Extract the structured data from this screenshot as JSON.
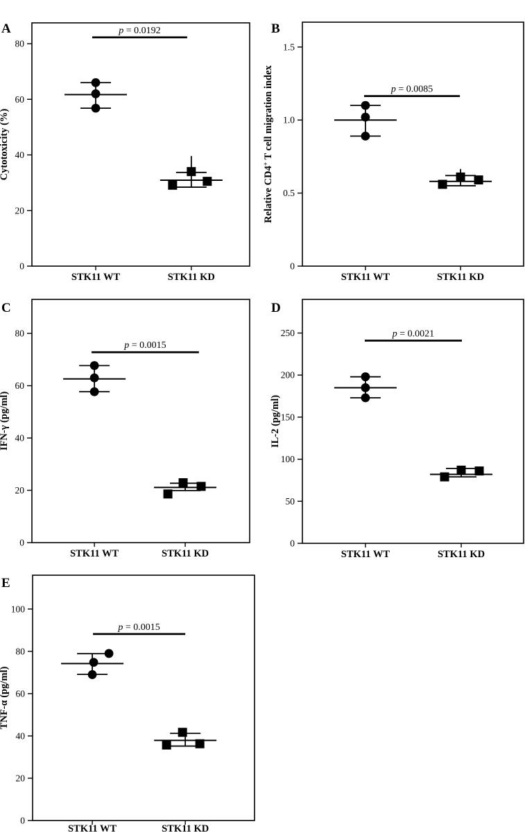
{
  "figure": {
    "background": "#ffffff",
    "ink": "#000000",
    "group_labels": [
      "STK11 WT",
      "STK11 KD"
    ]
  },
  "chart_data": [
    {
      "panel": "A",
      "type": "scatter",
      "ylabel": "Cytotoxicity (%)",
      "ylabel_segments": [
        {
          "text": "Cytotoxicity (%)",
          "sup": false
        }
      ],
      "ylim": [
        0,
        87.5
      ],
      "yticks": [
        0,
        20,
        40,
        60,
        80
      ],
      "ytick_labels": [
        "0",
        "20",
        "40",
        "60",
        "80"
      ],
      "categories": [
        "STK11 WT",
        "STK11 KD"
      ],
      "p_label": "p = 0.0192",
      "p_bar": {
        "y": 82.3,
        "x1_frac": 0.277,
        "x2_frac": 0.713
      },
      "series": [
        {
          "name": "STK11 WT",
          "marker": "circle",
          "points": [
            {
              "v": 66,
              "dx": 0
            },
            {
              "v": 62,
              "dx": 0
            },
            {
              "v": 56.8,
              "dx": 0
            }
          ],
          "mean": 61.7,
          "cap_hi": 66,
          "cap_lo": 56.8
        },
        {
          "name": "STK11 KD",
          "marker": "square",
          "points": [
            {
              "v": 34,
              "dx": 0
            },
            {
              "v": 29.1,
              "dx": -27
            },
            {
              "v": 30.5,
              "dx": 23
            }
          ],
          "mean": 30.9,
          "cap_hi": 33.7,
          "cap_lo": 28.4,
          "line_top": 39.6
        }
      ]
    },
    {
      "panel": "B",
      "type": "scatter",
      "ylabel": "Relative CD4+ T cell migration index",
      "ylabel_segments": [
        {
          "text": "Relative CD4",
          "sup": false
        },
        {
          "text": "+",
          "sup": true
        },
        {
          "text": " T cell migration index",
          "sup": false
        }
      ],
      "ylim": [
        0,
        1.67
      ],
      "yticks": [
        0,
        0.5,
        1.0,
        1.5
      ],
      "ytick_labels": [
        "0",
        "0.5",
        "1.0",
        "1.5"
      ],
      "categories": [
        "STK11 WT",
        "STK11 KD"
      ],
      "p_label": "p = 0.0085",
      "p_bar": {
        "y": 1.164,
        "x1_frac": 0.279,
        "x2_frac": 0.712
      },
      "series": [
        {
          "name": "STK11 WT",
          "marker": "circle",
          "points": [
            {
              "v": 1.1,
              "dx": 0
            },
            {
              "v": 1.02,
              "dx": 0
            },
            {
              "v": 0.89,
              "dx": 0
            }
          ],
          "mean": 1.0,
          "cap_hi": 1.1,
          "cap_lo": 0.89
        },
        {
          "name": "STK11 KD",
          "marker": "square",
          "points": [
            {
              "v": 0.61,
              "dx": 0
            },
            {
              "v": 0.56,
              "dx": -26
            },
            {
              "v": 0.59,
              "dx": 26
            }
          ],
          "mean": 0.58,
          "cap_hi": 0.62,
          "cap_lo": 0.55,
          "line_top": 0.665
        }
      ]
    },
    {
      "panel": "C",
      "type": "scatter",
      "ylabel": "IFN-γ (pg/ml)",
      "ylabel_segments": [
        {
          "text": "IFN-γ (pg/ml)",
          "sup": false
        }
      ],
      "ylim": [
        0,
        93
      ],
      "yticks": [
        0,
        20,
        40,
        60,
        80
      ],
      "ytick_labels": [
        "0",
        "20",
        "40",
        "60",
        "80"
      ],
      "categories": [
        "STK11 WT",
        "STK11 KD"
      ],
      "p_label": "p = 0.0015",
      "p_bar": {
        "y": 72.8,
        "x1_frac": 0.274,
        "x2_frac": 0.767
      },
      "series": [
        {
          "name": "STK11 WT",
          "marker": "circle",
          "points": [
            {
              "v": 67.7,
              "dx": 0
            },
            {
              "v": 63,
              "dx": 0
            },
            {
              "v": 57.7,
              "dx": 0
            }
          ],
          "mean": 62.6,
          "cap_hi": 67.7,
          "cap_lo": 57.7
        },
        {
          "name": "STK11 KD",
          "marker": "square",
          "points": [
            {
              "v": 22.9,
              "dx": -3
            },
            {
              "v": 18.6,
              "dx": -25
            },
            {
              "v": 21.5,
              "dx": 23
            }
          ],
          "mean": 21.1,
          "cap_hi": 22.7,
          "cap_lo": 19.9
        }
      ]
    },
    {
      "panel": "D",
      "type": "scatter",
      "ylabel": "IL-2 (pg/ml)",
      "ylabel_segments": [
        {
          "text": "IL-2 (pg/ml)",
          "sup": false
        }
      ],
      "ylim": [
        0,
        290
      ],
      "yticks": [
        0,
        50,
        100,
        150,
        200,
        250
      ],
      "ytick_labels": [
        "0",
        "50",
        "100",
        "150",
        "200",
        "250"
      ],
      "categories": [
        "STK11 WT",
        "STK11 KD"
      ],
      "p_label": "p = 0.0021",
      "p_bar": {
        "y": 241,
        "x1_frac": 0.282,
        "x2_frac": 0.721
      },
      "series": [
        {
          "name": "STK11 WT",
          "marker": "circle",
          "points": [
            {
              "v": 198,
              "dx": 0
            },
            {
              "v": 185,
              "dx": 0
            },
            {
              "v": 173,
              "dx": 0
            }
          ],
          "mean": 185,
          "cap_hi": 198,
          "cap_lo": 173
        },
        {
          "name": "STK11 KD",
          "marker": "square",
          "points": [
            {
              "v": 87,
              "dx": 0
            },
            {
              "v": 79,
              "dx": -24
            },
            {
              "v": 86,
              "dx": 26
            }
          ],
          "mean": 82,
          "cap_hi": 89,
          "cap_lo": 79
        }
      ]
    },
    {
      "panel": "E",
      "type": "scatter",
      "ylabel": "TNF-α (pg/ml)",
      "ylabel_segments": [
        {
          "text": "TNF-α (pg/ml)",
          "sup": false
        }
      ],
      "ylim": [
        0,
        116
      ],
      "yticks": [
        0,
        20,
        40,
        60,
        80,
        100
      ],
      "ytick_labels": [
        "0",
        "20",
        "40",
        "60",
        "80",
        "100"
      ],
      "categories": [
        "STK11 WT",
        "STK11 KD"
      ],
      "p_label": "p = 0.0015",
      "p_bar": {
        "y": 88.2,
        "x1_frac": 0.272,
        "x2_frac": 0.688
      },
      "series": [
        {
          "name": "STK11 WT",
          "marker": "circle",
          "points": [
            {
              "v": 79,
              "dx": 24
            },
            {
              "v": 74.8,
              "dx": 2
            },
            {
              "v": 69,
              "dx": 0
            }
          ],
          "mean": 74.2,
          "cap_hi": 78.9,
          "cap_lo": 69.1
        },
        {
          "name": "STK11 KD",
          "marker": "square",
          "points": [
            {
              "v": 41.7,
              "dx": -4
            },
            {
              "v": 35.7,
              "dx": -27
            },
            {
              "v": 36.3,
              "dx": 21
            }
          ],
          "mean": 37.9,
          "cap_hi": 41.2,
          "cap_lo": 35.2
        }
      ]
    }
  ]
}
